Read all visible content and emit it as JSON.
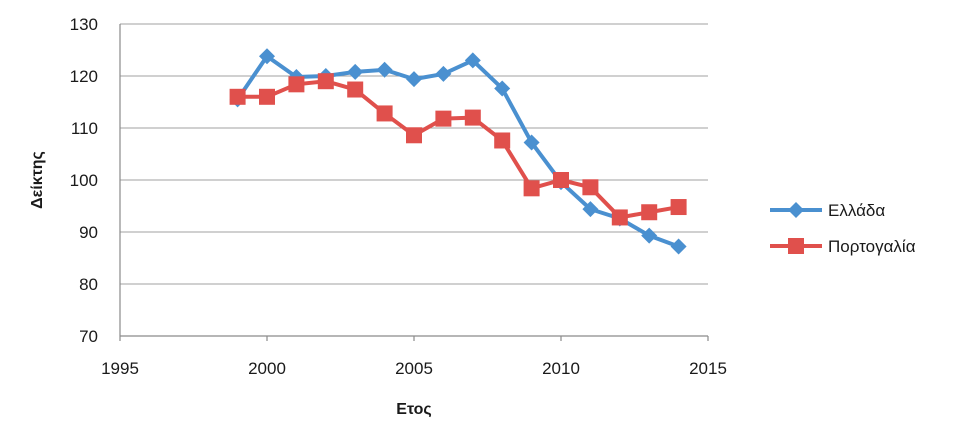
{
  "chart_data": {
    "type": "line",
    "title": "",
    "xlabel": "Ετος",
    "ylabel": "Δείκτης",
    "xlim": [
      1995,
      2015
    ],
    "ylim": [
      70,
      130
    ],
    "x_ticks": [
      1995,
      2000,
      2005,
      2010,
      2015
    ],
    "y_ticks": [
      70,
      80,
      90,
      100,
      110,
      120,
      130
    ],
    "grid": "horizontal",
    "legend_position": "right",
    "series": [
      {
        "name": "Ελλάδα",
        "color": "#4a90d0",
        "marker": "diamond",
        "x": [
          1999,
          2000,
          2001,
          2002,
          2003,
          2004,
          2005,
          2006,
          2007,
          2008,
          2009,
          2010,
          2011,
          2012,
          2013,
          2014
        ],
        "values": [
          115.5,
          123.8,
          119.8,
          120.0,
          120.8,
          121.2,
          119.4,
          120.4,
          123.0,
          117.6,
          107.2,
          99.6,
          94.4,
          92.6,
          89.3,
          87.2
        ]
      },
      {
        "name": "Πορτογαλία",
        "color": "#e0504c",
        "marker": "square",
        "x": [
          1999,
          2000,
          2001,
          2002,
          2003,
          2004,
          2005,
          2006,
          2007,
          2008,
          2009,
          2010,
          2011,
          2012,
          2013,
          2014
        ],
        "values": [
          116.0,
          116.0,
          118.4,
          119.0,
          117.4,
          112.8,
          108.6,
          111.8,
          112.0,
          107.6,
          98.4,
          100.0,
          98.6,
          92.8,
          93.8,
          94.8
        ]
      }
    ]
  }
}
